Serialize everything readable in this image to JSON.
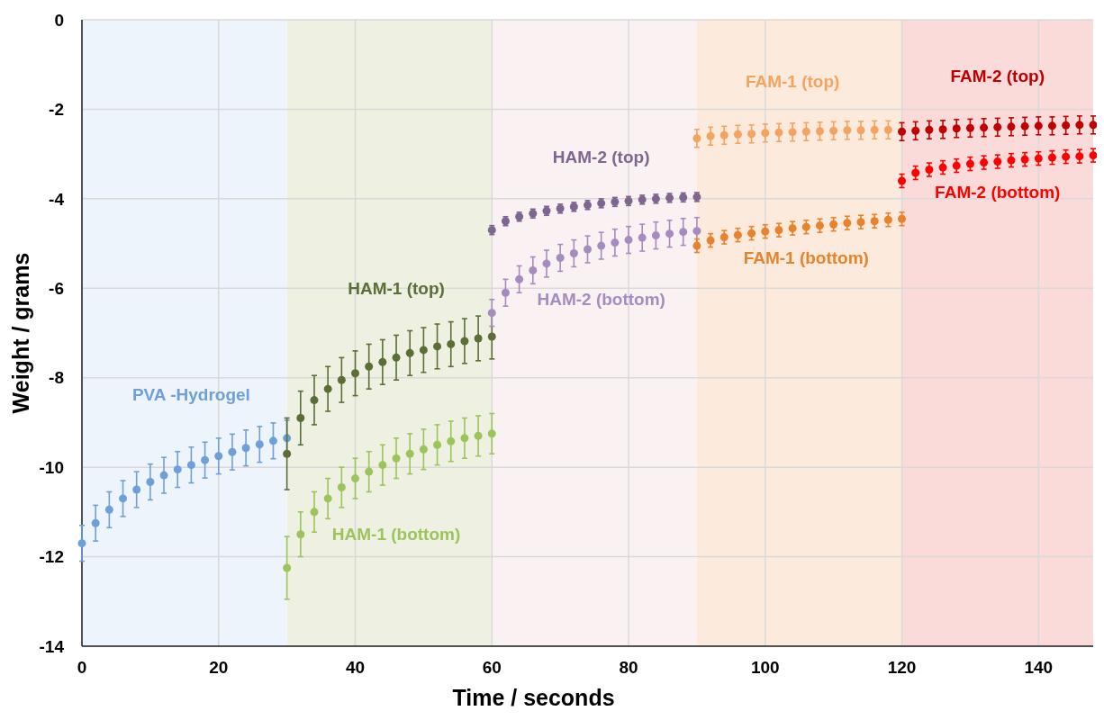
{
  "chart_data": {
    "type": "scatter",
    "xlabel": "Time / seconds",
    "ylabel": "Weight / grams",
    "xlim": [
      0,
      148
    ],
    "xticks": [
      0,
      20,
      40,
      60,
      80,
      100,
      120,
      140
    ],
    "ylim": [
      -14,
      0
    ],
    "yticks": [
      -14,
      -12,
      -10,
      -8,
      -6,
      -4,
      -2,
      0
    ],
    "grid": true,
    "marker": "circle",
    "bands": [
      {
        "axis": "x",
        "from": 0,
        "to": 30,
        "color": "#eef4fb"
      },
      {
        "axis": "x",
        "from": 30,
        "to": 60,
        "color": "#eef1e2"
      },
      {
        "axis": "x",
        "from": 60,
        "to": 90,
        "color": "#faf2f2"
      },
      {
        "axis": "x",
        "from": 90,
        "to": 120,
        "color": "#fcebdc"
      },
      {
        "axis": "x",
        "from": 120,
        "to": 148,
        "color": "#fbdada"
      }
    ],
    "series": [
      {
        "name": "PVA -Hydrogel",
        "color": "#6f9fd8",
        "x": [
          0,
          2,
          4,
          6,
          8,
          10,
          12,
          14,
          16,
          18,
          20,
          22,
          24,
          26,
          28,
          30
        ],
        "values": [
          -11.7,
          -11.25,
          -10.95,
          -10.7,
          -10.5,
          -10.33,
          -10.18,
          -10.05,
          -9.95,
          -9.84,
          -9.75,
          -9.66,
          -9.57,
          -9.49,
          -9.41,
          -9.35
        ],
        "errors": [
          0.4,
          0.4,
          0.4,
          0.4,
          0.4,
          0.4,
          0.4,
          0.4,
          0.4,
          0.4,
          0.4,
          0.4,
          0.4,
          0.4,
          0.4,
          0.4
        ]
      },
      {
        "name": "HAM-1 (top)",
        "color": "#5a6e35",
        "x": [
          30,
          32,
          34,
          36,
          38,
          40,
          42,
          44,
          46,
          48,
          50,
          52,
          54,
          56,
          58,
          60
        ],
        "values": [
          -9.7,
          -8.9,
          -8.5,
          -8.25,
          -8.05,
          -7.9,
          -7.75,
          -7.65,
          -7.55,
          -7.45,
          -7.38,
          -7.3,
          -7.25,
          -7.18,
          -7.12,
          -7.08
        ],
        "errors": [
          0.8,
          0.6,
          0.55,
          0.5,
          0.5,
          0.5,
          0.5,
          0.5,
          0.5,
          0.5,
          0.5,
          0.5,
          0.5,
          0.5,
          0.5,
          0.5
        ]
      },
      {
        "name": "HAM-1 (bottom)",
        "color": "#9bc45a",
        "x": [
          30,
          32,
          34,
          36,
          38,
          40,
          42,
          44,
          46,
          48,
          50,
          52,
          54,
          56,
          58,
          60
        ],
        "values": [
          -12.25,
          -11.5,
          -11.0,
          -10.7,
          -10.45,
          -10.25,
          -10.1,
          -9.95,
          -9.8,
          -9.7,
          -9.6,
          -9.5,
          -9.42,
          -9.35,
          -9.3,
          -9.25
        ],
        "errors": [
          0.7,
          0.5,
          0.45,
          0.45,
          0.45,
          0.45,
          0.45,
          0.45,
          0.45,
          0.45,
          0.45,
          0.45,
          0.45,
          0.45,
          0.45,
          0.45
        ]
      },
      {
        "name": "HAM-2 (top)",
        "color": "#7d6690",
        "x": [
          60,
          62,
          64,
          66,
          68,
          70,
          72,
          74,
          76,
          78,
          80,
          82,
          84,
          86,
          88,
          90
        ],
        "values": [
          -4.7,
          -4.5,
          -4.4,
          -4.33,
          -4.27,
          -4.22,
          -4.18,
          -4.14,
          -4.1,
          -4.07,
          -4.05,
          -4.02,
          -4.0,
          -3.98,
          -3.97,
          -3.96
        ],
        "errors": [
          0.1,
          0.1,
          0.1,
          0.1,
          0.1,
          0.1,
          0.1,
          0.1,
          0.1,
          0.1,
          0.1,
          0.1,
          0.1,
          0.1,
          0.1,
          0.1
        ]
      },
      {
        "name": "HAM-2 (bottom)",
        "color": "#a58cc0",
        "x": [
          60,
          62,
          64,
          66,
          68,
          70,
          72,
          74,
          76,
          78,
          80,
          82,
          84,
          86,
          88,
          90
        ],
        "values": [
          -6.55,
          -6.1,
          -5.8,
          -5.6,
          -5.45,
          -5.32,
          -5.22,
          -5.13,
          -5.05,
          -4.98,
          -4.92,
          -4.87,
          -4.82,
          -4.78,
          -4.74,
          -4.72
        ],
        "errors": [
          0.3,
          0.3,
          0.3,
          0.3,
          0.3,
          0.3,
          0.3,
          0.3,
          0.3,
          0.3,
          0.3,
          0.3,
          0.3,
          0.3,
          0.3,
          0.3
        ]
      },
      {
        "name": "FAM-1 (top)",
        "color": "#f4a460",
        "x": [
          90,
          92,
          94,
          96,
          98,
          100,
          102,
          104,
          106,
          108,
          110,
          112,
          114,
          116,
          118
        ],
        "values": [
          -2.65,
          -2.6,
          -2.58,
          -2.56,
          -2.55,
          -2.53,
          -2.52,
          -2.51,
          -2.5,
          -2.49,
          -2.48,
          -2.47,
          -2.47,
          -2.46,
          -2.46
        ],
        "errors": [
          0.2,
          0.2,
          0.2,
          0.2,
          0.2,
          0.2,
          0.2,
          0.2,
          0.2,
          0.2,
          0.2,
          0.2,
          0.2,
          0.2,
          0.2
        ]
      },
      {
        "name": "FAM-1 (bottom)",
        "color": "#e8822c",
        "x": [
          90,
          92,
          94,
          96,
          98,
          100,
          102,
          104,
          106,
          108,
          110,
          112,
          114,
          116,
          118,
          120
        ],
        "values": [
          -5.05,
          -4.93,
          -4.86,
          -4.81,
          -4.77,
          -4.73,
          -4.7,
          -4.66,
          -4.63,
          -4.6,
          -4.57,
          -4.54,
          -4.52,
          -4.5,
          -4.47,
          -4.45
        ],
        "errors": [
          0.15,
          0.15,
          0.15,
          0.15,
          0.15,
          0.15,
          0.15,
          0.15,
          0.15,
          0.15,
          0.15,
          0.15,
          0.15,
          0.15,
          0.15,
          0.15
        ]
      },
      {
        "name": "FAM-2 (top)",
        "color": "#c00000",
        "x": [
          120,
          122,
          124,
          126,
          128,
          130,
          132,
          134,
          136,
          138,
          140,
          142,
          144,
          146,
          148
        ],
        "values": [
          -2.5,
          -2.48,
          -2.46,
          -2.45,
          -2.43,
          -2.42,
          -2.41,
          -2.4,
          -2.39,
          -2.38,
          -2.37,
          -2.37,
          -2.36,
          -2.35,
          -2.35
        ],
        "errors": [
          0.2,
          0.2,
          0.2,
          0.2,
          0.2,
          0.2,
          0.2,
          0.2,
          0.2,
          0.2,
          0.2,
          0.2,
          0.2,
          0.2,
          0.2
        ]
      },
      {
        "name": "FAM-2 (bottom)",
        "color": "#ff0000",
        "x": [
          120,
          122,
          124,
          126,
          128,
          130,
          132,
          134,
          136,
          138,
          140,
          142,
          144,
          146,
          148
        ],
        "values": [
          -3.6,
          -3.42,
          -3.35,
          -3.3,
          -3.26,
          -3.22,
          -3.19,
          -3.17,
          -3.14,
          -3.12,
          -3.1,
          -3.08,
          -3.06,
          -3.05,
          -3.03
        ],
        "errors": [
          0.15,
          0.15,
          0.15,
          0.15,
          0.15,
          0.15,
          0.15,
          0.15,
          0.15,
          0.15,
          0.15,
          0.15,
          0.15,
          0.15,
          0.15
        ]
      }
    ]
  }
}
